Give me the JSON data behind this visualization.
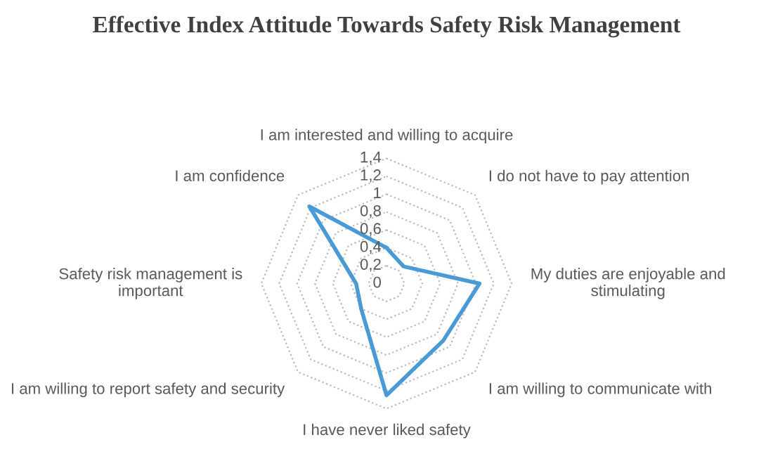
{
  "chart_data": {
    "type": "radar",
    "title": "Effective Index Attitude Towards Safety Risk Management",
    "categories": [
      "I am interested and willing to acquire",
      "I do not have to pay attention",
      "My duties are enjoyable and stimulating",
      "I am willing to communicate with",
      "I have never liked safety",
      "I am willing to report safety and security",
      "Safety risk management is important",
      "I am confidence"
    ],
    "series": [
      {
        "color": "#4a9ad6",
        "values": [
          0.4,
          0.27,
          1.04,
          0.9,
          1.25,
          0.4,
          0.34,
          1.22
        ]
      }
    ],
    "ylim": [
      0,
      1.4
    ],
    "yticks": [
      {
        "value": 0,
        "label": "0"
      },
      {
        "value": 0.2,
        "label": "0,2"
      },
      {
        "value": 0.4,
        "label": "0,4"
      },
      {
        "value": 0.6,
        "label": "0,6"
      },
      {
        "value": 0.8,
        "label": "0,8"
      },
      {
        "value": 1,
        "label": "1"
      },
      {
        "value": 1.2,
        "label": "1,2"
      },
      {
        "value": 1.4,
        "label": "1,4"
      }
    ],
    "grid": true,
    "marker": "none",
    "line_style": "solid"
  }
}
